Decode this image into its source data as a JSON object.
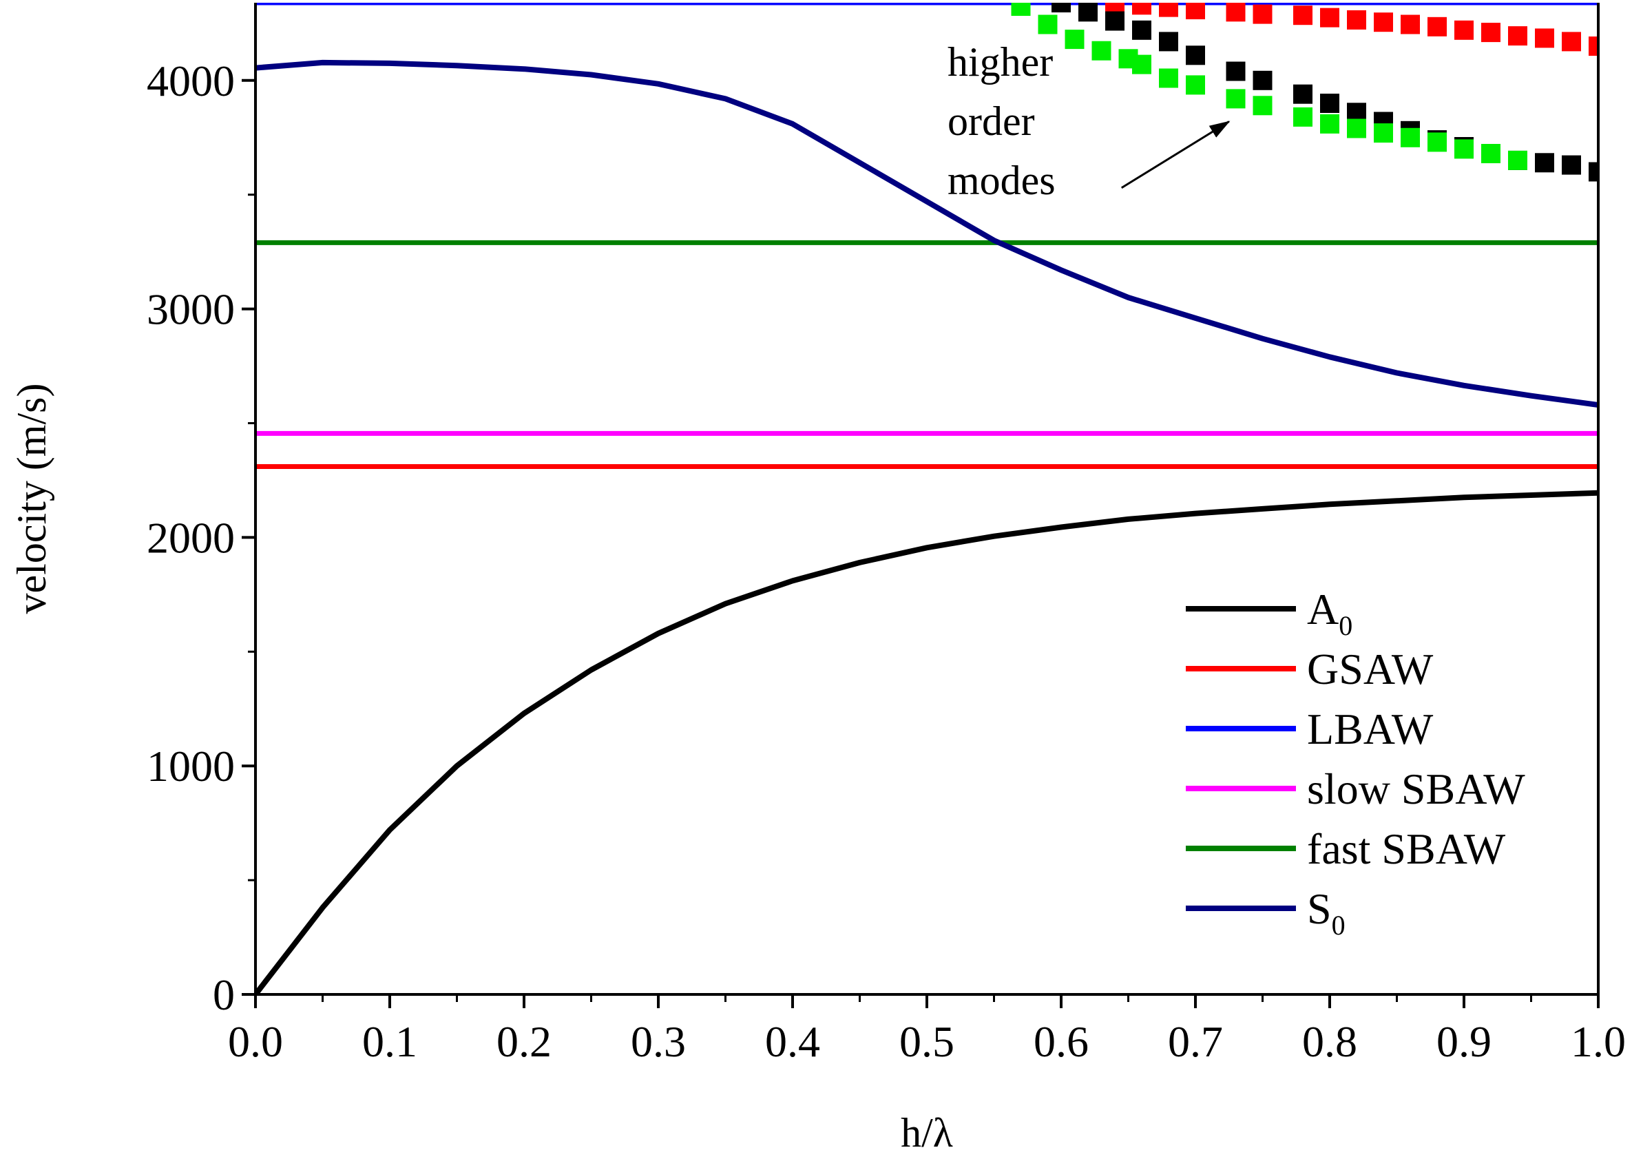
{
  "chart_data": {
    "type": "line",
    "title": "",
    "xlabel": "h/λ",
    "ylabel": "velocity (m/s)",
    "xlim": [
      0,
      1
    ],
    "ylim": [
      0,
      4340
    ],
    "x_ticks": [
      0.0,
      0.1,
      0.2,
      0.3,
      0.4,
      0.5,
      0.6,
      0.7,
      0.8,
      0.9,
      1.0
    ],
    "x_tick_labels": [
      "0.0",
      "0.1",
      "0.2",
      "0.3",
      "0.4",
      "0.5",
      "0.6",
      "0.7",
      "0.8",
      "0.9",
      "1.0"
    ],
    "y_ticks": [
      0,
      1000,
      2000,
      3000,
      4000
    ],
    "y_tick_labels": [
      "0",
      "1000",
      "2000",
      "3000",
      "4000"
    ],
    "grid": false,
    "legend_position": "bottom-right",
    "series": [
      {
        "name": "A",
        "subscript": "0",
        "color": "#000000",
        "style": "line",
        "x": [
          0,
          0.05,
          0.1,
          0.15,
          0.2,
          0.25,
          0.3,
          0.35,
          0.4,
          0.45,
          0.5,
          0.55,
          0.6,
          0.65,
          0.7,
          0.75,
          0.8,
          0.85,
          0.9,
          0.95,
          1.0
        ],
        "y": [
          0,
          380,
          720,
          1000,
          1230,
          1420,
          1580,
          1710,
          1810,
          1890,
          1955,
          2005,
          2045,
          2080,
          2105,
          2125,
          2145,
          2160,
          2175,
          2185,
          2195
        ]
      },
      {
        "name": "GSAW",
        "subscript": "",
        "color": "#ff0000",
        "style": "line",
        "x": [
          0,
          1.0
        ],
        "y": [
          2310,
          2310
        ]
      },
      {
        "name": "LBAW",
        "subscript": "",
        "color": "#0000ff",
        "style": "line",
        "x": [
          0,
          1.0
        ],
        "y": [
          4340,
          4340
        ]
      },
      {
        "name": "slow SBAW",
        "subscript": "",
        "color": "#ff00ff",
        "style": "line",
        "x": [
          0,
          1.0
        ],
        "y": [
          2455,
          2455
        ]
      },
      {
        "name": "fast SBAW",
        "subscript": "",
        "color": "#008000",
        "style": "line",
        "x": [
          0,
          1.0
        ],
        "y": [
          3290,
          3290
        ]
      },
      {
        "name": "S",
        "subscript": "0",
        "color": "#000080",
        "style": "line",
        "x": [
          0,
          0.05,
          0.1,
          0.15,
          0.2,
          0.25,
          0.3,
          0.35,
          0.4,
          0.45,
          0.5,
          0.55,
          0.6,
          0.65,
          0.7,
          0.75,
          0.8,
          0.85,
          0.9,
          0.95,
          1.0
        ],
        "y": [
          4055,
          4078,
          4075,
          4065,
          4050,
          4025,
          3985,
          3920,
          3810,
          3640,
          3470,
          3300,
          3170,
          3050,
          2960,
          2870,
          2790,
          2720,
          2665,
          2620,
          2580
        ]
      }
    ],
    "scatter_series": [
      {
        "name": "higher order mode (red)",
        "color": "#ff0000",
        "x": [
          0.62,
          0.64,
          0.66,
          0.68,
          0.7,
          0.73,
          0.75,
          0.78,
          0.8,
          0.82,
          0.84,
          0.86,
          0.88,
          0.9,
          0.92,
          0.94,
          0.96,
          0.98,
          1.0
        ],
        "y": [
          4340,
          4335,
          4330,
          4320,
          4310,
          4300,
          4290,
          4285,
          4275,
          4265,
          4255,
          4245,
          4235,
          4220,
          4210,
          4195,
          4185,
          4170,
          4150
        ]
      },
      {
        "name": "higher order mode (black)",
        "color": "#000000",
        "x": [
          0.6,
          0.62,
          0.64,
          0.66,
          0.68,
          0.7,
          0.73,
          0.75,
          0.78,
          0.8,
          0.82,
          0.84,
          0.86,
          0.88,
          0.9,
          0.92,
          0.94,
          0.96,
          0.98,
          1.0
        ],
        "y": [
          4340,
          4300,
          4260,
          4220,
          4170,
          4110,
          4040,
          4000,
          3940,
          3900,
          3860,
          3820,
          3780,
          3740,
          3710,
          3680,
          3650,
          3640,
          3630,
          3600
        ]
      },
      {
        "name": "higher order mode (green)",
        "color": "#00ee00",
        "x": [
          0.57,
          0.59,
          0.61,
          0.63,
          0.65,
          0.66,
          0.68,
          0.7,
          0.73,
          0.75,
          0.78,
          0.8,
          0.82,
          0.84,
          0.86,
          0.88,
          0.9,
          0.92,
          0.94
        ],
        "y": [
          4325,
          4245,
          4180,
          4130,
          4095,
          4070,
          4010,
          3980,
          3920,
          3890,
          3840,
          3810,
          3790,
          3770,
          3750,
          3730,
          3700,
          3680,
          3650
        ]
      }
    ],
    "annotation": {
      "lines": [
        "higher",
        "order",
        "modes"
      ],
      "arrow_from": [
        0.645,
        3530
      ],
      "arrow_to": [
        0.725,
        3820
      ]
    }
  }
}
